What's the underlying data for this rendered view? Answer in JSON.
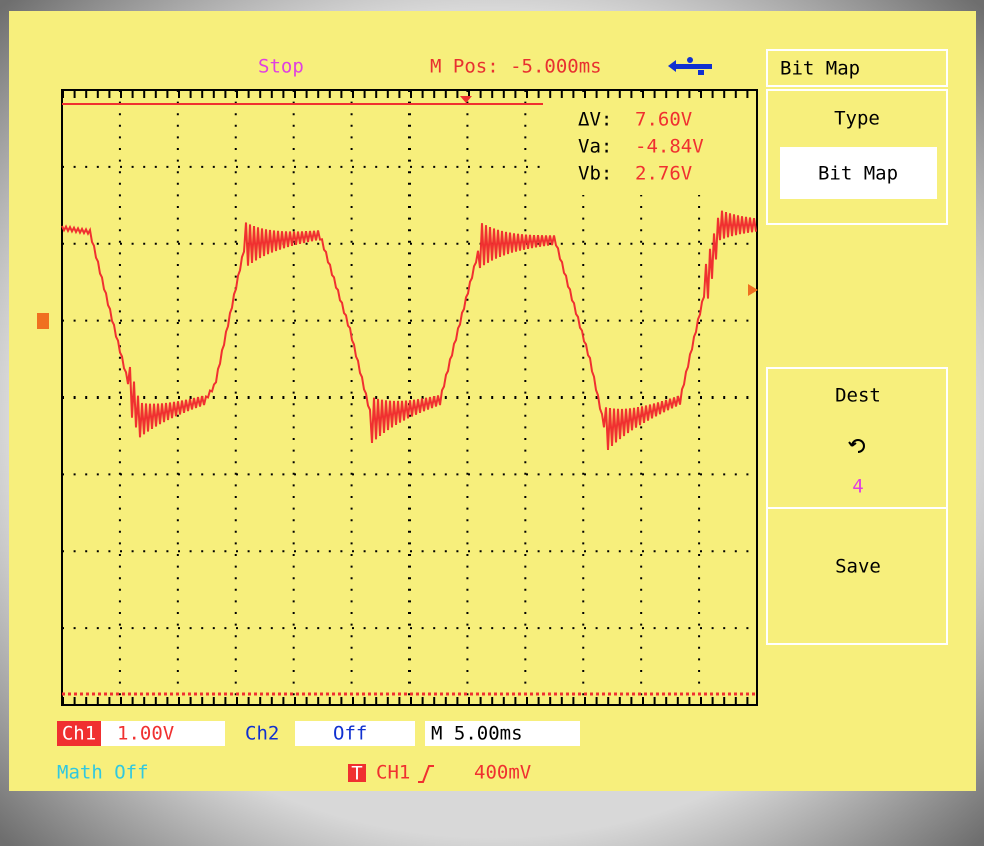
{
  "status": {
    "state": "Stop",
    "position": "M Pos: -5.000ms"
  },
  "menu": {
    "title": "Bit Map",
    "type_label": "Type",
    "type_value": "Bit Map",
    "dest_label": "Dest",
    "dest_value": "4",
    "save_label": "Save"
  },
  "cursors": {
    "rows": [
      [
        "ΔV:",
        "7.60V"
      ],
      [
        "Va:",
        "-4.84V"
      ],
      [
        "Vb:",
        "2.76V"
      ]
    ]
  },
  "channels": {
    "ch1_label": "Ch1",
    "ch1_scale": "1.00V",
    "ch2_label": "Ch2",
    "ch2_state": "Off",
    "timebase": "M 5.00ms",
    "math": "Math Off"
  },
  "trigger": {
    "icon": "T",
    "source": "CH1",
    "level": "400mV"
  }
}
